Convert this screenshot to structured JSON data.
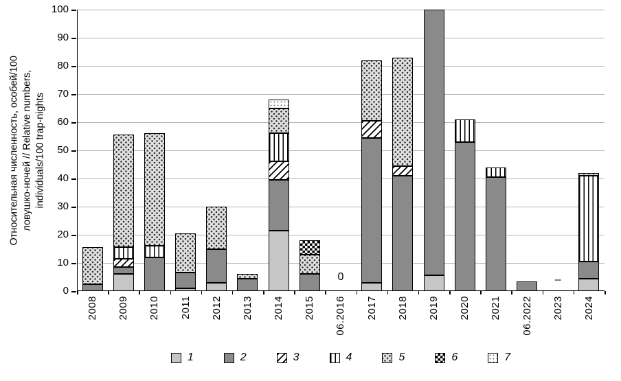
{
  "y_axis_title": "Относительная численность, особей/100\nловушко-ночей // Relative numbers,\nindividuals/100 trap-nights",
  "chart_data": {
    "type": "bar",
    "stacked": true,
    "title": "",
    "xlabel": "",
    "ylabel": "Относительная численность, особей/100 ловушко-ночей // Relative numbers, individuals/100 trap-nights",
    "ylim": [
      0,
      100
    ],
    "ytick_step": 10,
    "grid": true,
    "legend_position": "bottom",
    "categories": [
      "2008",
      "2009",
      "2010",
      "2011",
      "2012",
      "2013",
      "2014",
      "2015",
      "06.2016",
      "2017",
      "2018",
      "2019",
      "2020",
      "2021",
      "06.2022",
      "2023",
      "2024"
    ],
    "series": [
      {
        "name": "1",
        "pattern": "light-gray",
        "values": [
          0,
          6,
          0,
          1,
          3,
          0,
          21.5,
          0,
          0,
          3,
          0,
          5.5,
          0,
          0,
          0,
          0,
          4.5
        ]
      },
      {
        "name": "2",
        "pattern": "dark-gray",
        "values": [
          2.5,
          2.5,
          12,
          5.5,
          12,
          4.5,
          18,
          6,
          0,
          51.5,
          41,
          94.5,
          53,
          40.5,
          3.5,
          0,
          6
        ]
      },
      {
        "name": "3",
        "pattern": "diagonal",
        "values": [
          0,
          3,
          0,
          0,
          0,
          0,
          6.5,
          0,
          0,
          6,
          3.5,
          0,
          0,
          0,
          0,
          0,
          0
        ]
      },
      {
        "name": "4",
        "pattern": "vertical",
        "values": [
          0,
          4,
          4,
          0,
          0,
          0,
          10,
          0,
          0,
          0,
          0,
          0,
          8,
          3.5,
          0,
          0,
          30.5
        ]
      },
      {
        "name": "5",
        "pattern": "coarse-dots",
        "values": [
          13,
          40,
          40,
          14,
          15,
          1.5,
          9,
          7,
          0,
          21.5,
          38.5,
          0,
          0,
          0,
          0,
          0,
          1
        ]
      },
      {
        "name": "6",
        "pattern": "checker",
        "values": [
          0,
          0,
          0,
          0,
          0,
          0,
          0,
          5,
          0,
          0,
          0,
          0,
          0,
          0,
          0,
          0,
          0
        ]
      },
      {
        "name": "7",
        "pattern": "fine-dots",
        "values": [
          0,
          0,
          0,
          0,
          0,
          0,
          3,
          0,
          0,
          0,
          0,
          0,
          0,
          0,
          0,
          0,
          0
        ]
      }
    ],
    "annotations": [
      {
        "category": "06.2016",
        "text": "0",
        "value": 5
      },
      {
        "category": "2023",
        "text": "–",
        "value": 4
      }
    ]
  },
  "legend": {
    "items": [
      {
        "label": "1",
        "pattern": "light-gray"
      },
      {
        "label": "2",
        "pattern": "dark-gray"
      },
      {
        "label": "3",
        "pattern": "diagonal"
      },
      {
        "label": "4",
        "pattern": "vertical"
      },
      {
        "label": "5",
        "pattern": "coarse-dots"
      },
      {
        "label": "6",
        "pattern": "checker"
      },
      {
        "label": "7",
        "pattern": "fine-dots"
      }
    ]
  }
}
